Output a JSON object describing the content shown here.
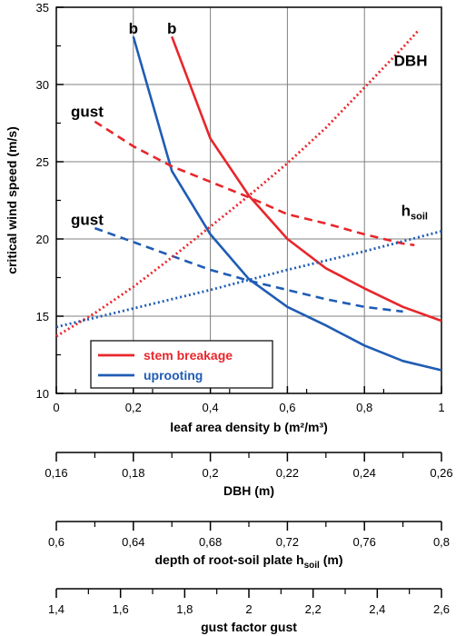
{
  "colors": {
    "stem": "#e8262b",
    "uproot": "#1f5cb4",
    "grid": "#808080",
    "axis": "#000000"
  },
  "chart_data": {
    "type": "line",
    "ylabel": "critical wind speed (m/s)",
    "ylim": [
      10,
      35
    ],
    "yticks": [
      "10",
      "15",
      "20",
      "25",
      "30",
      "35"
    ],
    "xlabel": "leaf area density  b (m²/m³)",
    "xlim": [
      0,
      1
    ],
    "xticks": [
      "0",
      "0,2",
      "0,4",
      "0,6",
      "0,8",
      "1"
    ],
    "grid": true,
    "extra_axes": [
      {
        "label": "DBH (m)",
        "ticks": [
          "0,16",
          "0,18",
          "0,2",
          "0,22",
          "0,24",
          "0,26"
        ]
      },
      {
        "label": "depth of root-soil plate h",
        "label_sub": "soil",
        "label_tail": " (m)",
        "ticks": [
          "0,6",
          "0,64",
          "0,68",
          "0,72",
          "0,76",
          "0,8"
        ]
      },
      {
        "label": "gust factor gust",
        "ticks": [
          "1,4",
          "1,6",
          "1,8",
          "2",
          "2,2",
          "2,4",
          "2,6"
        ]
      }
    ],
    "legend": {
      "position": "bottom-left",
      "entries": [
        {
          "label": "stem breakage",
          "color": "#e8262b"
        },
        {
          "label": "uprooting",
          "color": "#1f5cb4"
        }
      ]
    },
    "curve_labels": [
      {
        "text": "b",
        "x": 0.2,
        "y": 33.3
      },
      {
        "text": "b",
        "x": 0.3,
        "y": 33.3
      },
      {
        "text": "gust",
        "x": 0.08,
        "y": 27.9
      },
      {
        "text": "gust",
        "x": 0.08,
        "y": 20.9
      },
      {
        "text": "DBH",
        "x": 0.92,
        "y": 31.2
      },
      {
        "text": "h",
        "sub": "soil",
        "x": 0.93,
        "y": 21.5
      }
    ],
    "series": [
      {
        "name": "stem breakage",
        "role": "b",
        "color": "#e8262b",
        "style": "solid",
        "x": [
          0.3,
          0.4,
          0.5,
          0.6,
          0.7,
          0.8,
          0.9,
          1.0
        ],
        "y": [
          33.1,
          26.5,
          22.8,
          20.0,
          18.1,
          16.8,
          15.6,
          14.7
        ]
      },
      {
        "name": "uprooting",
        "role": "b",
        "color": "#1f5cb4",
        "style": "solid",
        "x": [
          0.2,
          0.3,
          0.4,
          0.5,
          0.6,
          0.7,
          0.8,
          0.9,
          1.0
        ],
        "y": [
          33.1,
          24.4,
          20.3,
          17.4,
          15.6,
          14.4,
          13.1,
          12.1,
          11.5
        ]
      },
      {
        "name": "stem breakage",
        "role": "gust",
        "color": "#e8262b",
        "style": "dashed",
        "x": [
          0.1,
          0.2,
          0.3,
          0.4,
          0.5,
          0.6,
          0.7,
          0.8,
          0.9,
          0.93
        ],
        "y": [
          27.6,
          26.0,
          24.7,
          23.7,
          22.7,
          21.6,
          21.0,
          20.3,
          19.7,
          19.6
        ]
      },
      {
        "name": "uprooting",
        "role": "gust",
        "color": "#1f5cb4",
        "style": "dashed",
        "x": [
          0.1,
          0.2,
          0.3,
          0.4,
          0.5,
          0.6,
          0.7,
          0.8,
          0.9
        ],
        "y": [
          20.7,
          19.8,
          18.9,
          18.0,
          17.3,
          16.7,
          16.1,
          15.6,
          15.3
        ]
      },
      {
        "name": "stem breakage",
        "role": "DBH",
        "color": "#e8262b",
        "style": "dotted",
        "x": [
          0.0,
          0.1,
          0.2,
          0.3,
          0.4,
          0.5,
          0.6,
          0.7,
          0.8,
          0.9,
          0.94
        ],
        "y": [
          13.7,
          15.2,
          16.9,
          18.8,
          20.8,
          22.8,
          24.9,
          27.2,
          29.8,
          32.4,
          33.5
        ]
      },
      {
        "name": "uprooting",
        "role": "h_soil",
        "color": "#1f5cb4",
        "style": "dotted",
        "x": [
          0.0,
          0.2,
          0.4,
          0.6,
          0.8,
          1.0
        ],
        "y": [
          14.3,
          15.5,
          16.7,
          18.0,
          19.2,
          20.5
        ]
      }
    ]
  }
}
